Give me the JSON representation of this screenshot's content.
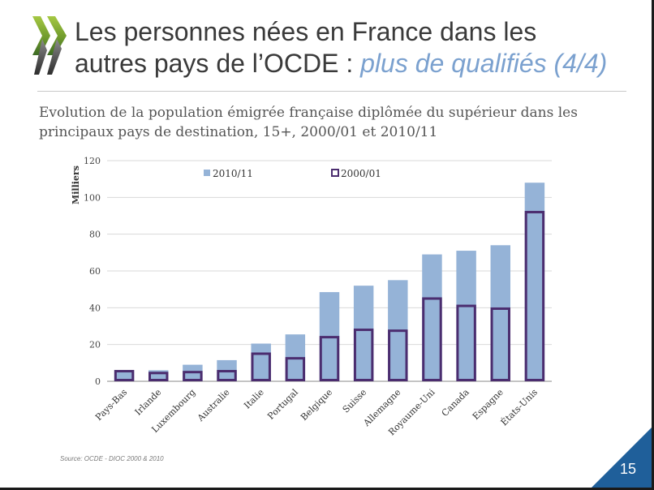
{
  "slide": {
    "title_line1": "Les personnes nées en France dans les",
    "title_line2_prefix": "autres pays de l’OCDE : ",
    "title_line2_highlight": "plus de qualifiés (4/4)",
    "subtitle": "Evolution de la population émigrée française diplômée du supérieur dans les principaux pays de destination, 15+, 2000/01 et 2010/11",
    "source": "Source: OCDE - DIOC 2000 & 2010",
    "page_number": "15",
    "colors": {
      "series_2010": "#95b3d7",
      "series_2000_outline": "#4b2d6f",
      "title_highlight": "#7ba1cf",
      "corner": "#1f5f9a"
    },
    "icons": [
      "oecd-logo-icon"
    ]
  },
  "chart_data": {
    "type": "bar",
    "categories": [
      "Pays-Bas",
      "Irlande",
      "Luxembourg",
      "Australie",
      "Italie",
      "Portugal",
      "Belgique",
      "Suisse",
      "Allemagne",
      "Royaume-Uni",
      "Canada",
      "Espagne",
      "États-Unis"
    ],
    "series": [
      {
        "name": "2010/11",
        "style": "filled",
        "values": [
          6,
          6,
          9,
          11.5,
          20.5,
          25.5,
          48.5,
          52,
          55,
          69,
          71,
          74,
          108
        ]
      },
      {
        "name": "2000/01",
        "style": "outline",
        "values": [
          5.5,
          4.5,
          5,
          5.5,
          15,
          12.5,
          24,
          28,
          27.5,
          45,
          41,
          39.5,
          92
        ]
      }
    ],
    "ylabel": "Milliers",
    "ylim": [
      0,
      120
    ],
    "yticks": [
      0,
      20,
      40,
      60,
      80,
      100,
      120
    ],
    "grid": true,
    "legend_position": "top"
  }
}
